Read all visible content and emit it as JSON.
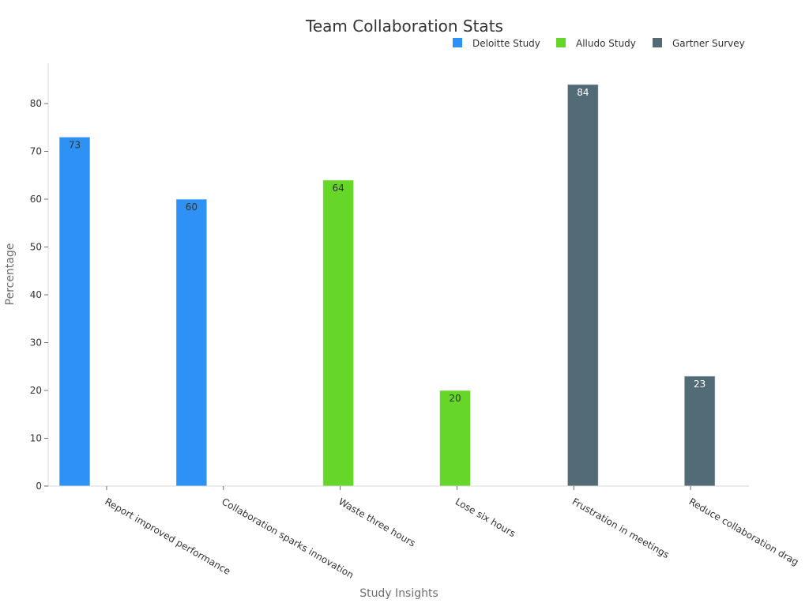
{
  "chart_data": {
    "type": "bar",
    "title": "Team Collaboration Stats",
    "xlabel": "Study Insights",
    "ylabel": "Percentage",
    "ylim": [
      0,
      88
    ],
    "yticks": [
      0,
      10,
      20,
      30,
      40,
      50,
      60,
      70,
      80
    ],
    "grid": false,
    "legend_position": "top-right",
    "categories": [
      "Report improved performance",
      "Collaboration sparks innovation",
      "Waste three hours",
      "Lose six hours",
      "Frustration in meetings",
      "Reduce collaboration drag"
    ],
    "series": [
      {
        "name": "Deloitte Study",
        "color": "#2d91f5",
        "label_color": "#333333",
        "values": [
          73,
          60,
          null,
          null,
          null,
          null
        ]
      },
      {
        "name": "Alludo Study",
        "color": "#66d628",
        "label_color": "#333333",
        "values": [
          null,
          null,
          64,
          20,
          null,
          null
        ]
      },
      {
        "name": "Gartner Survey",
        "color": "#536b77",
        "label_color": "#ffffff",
        "values": [
          null,
          null,
          null,
          null,
          84,
          23
        ]
      }
    ]
  }
}
